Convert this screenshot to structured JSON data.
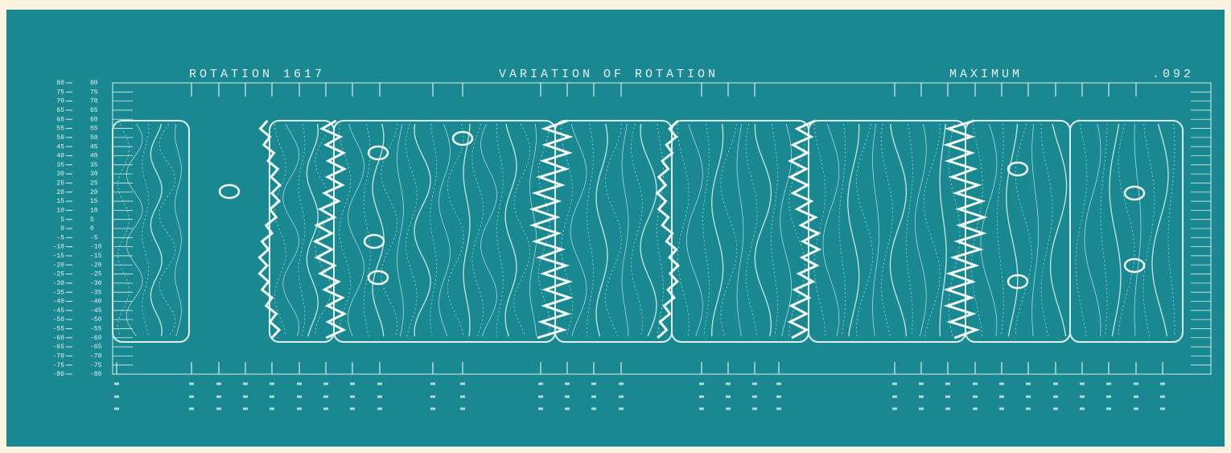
{
  "header": {
    "left": "ROTATION 1617",
    "center": "VARIATION OF ROTATION",
    "right_label": "MAXIMUM",
    "right_value": ".092"
  },
  "y_labels": [
    "80",
    "75",
    "70",
    "65",
    "60",
    "55",
    "50",
    "45",
    "40",
    "35",
    "30",
    "25",
    "20",
    "15",
    "10",
    "5",
    "0",
    "-5",
    "-10",
    "-15",
    "-20",
    "-25",
    "-30",
    "-35",
    "-40",
    "-45",
    "-50",
    "-55",
    "-60",
    "-65",
    "-70",
    "-75",
    "-80"
  ]
}
